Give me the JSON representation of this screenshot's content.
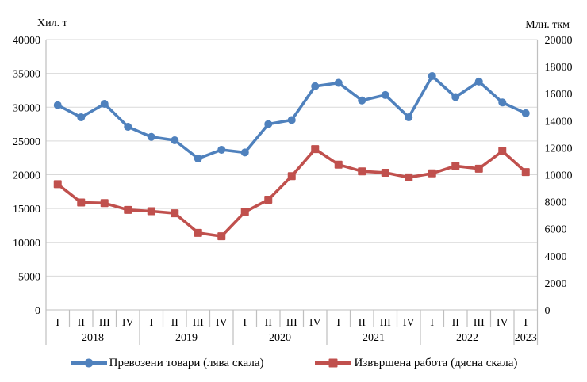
{
  "page": {
    "background": "#FFFFFF"
  },
  "chart_data": {
    "type": "line",
    "title": "",
    "left_axis": {
      "title": "Хил. т",
      "min": 0,
      "max": 40000,
      "step": 5000,
      "tick_labels": [
        "0",
        "5000",
        "10000",
        "15000",
        "20000",
        "25000",
        "30000",
        "35000",
        "40000"
      ]
    },
    "right_axis": {
      "title": "Млн. ткм",
      "min": 0,
      "max": 20000,
      "step": 2000,
      "tick_labels": [
        "0",
        "2000",
        "4000",
        "6000",
        "8000",
        "10000",
        "12000",
        "14000",
        "16000",
        "18000",
        "20000"
      ]
    },
    "x": {
      "quarters": [
        "I",
        "II",
        "III",
        "IV",
        "I",
        "II",
        "III",
        "IV",
        "I",
        "II",
        "III",
        "IV",
        "I",
        "II",
        "III",
        "IV",
        "I",
        "II",
        "III",
        "IV",
        "I"
      ],
      "year_groups": [
        {
          "label": "2018",
          "count": 4
        },
        {
          "label": "2019",
          "count": 4
        },
        {
          "label": "2020",
          "count": 4
        },
        {
          "label": "2021",
          "count": 4
        },
        {
          "label": "2022",
          "count": 4
        },
        {
          "label": "2023",
          "count": 1
        }
      ]
    },
    "series": [
      {
        "name": "Превозени  товари (лява скала)",
        "axis": "left",
        "color": "#4F81BD",
        "marker": "circle",
        "values": [
          30300,
          28500,
          30500,
          27100,
          25600,
          25100,
          22400,
          23700,
          23300,
          27500,
          28100,
          33100,
          33600,
          31000,
          31800,
          28500,
          34600,
          31500,
          33800,
          30700,
          29100
        ]
      },
      {
        "name": "Извършена  работа (дясна скала)",
        "axis": "right",
        "color": "#C0504D",
        "marker": "square",
        "values": [
          9300,
          7950,
          7900,
          7400,
          7300,
          7150,
          5700,
          5450,
          7250,
          8150,
          9900,
          11900,
          10750,
          10250,
          10150,
          9800,
          10100,
          10650,
          10450,
          11750,
          10200
        ]
      }
    ],
    "grid": true,
    "legend_position": "bottom",
    "colors": {
      "gridline": "#D9D9D9",
      "axis_line": "#BFBFBF",
      "text": "#000000"
    }
  }
}
